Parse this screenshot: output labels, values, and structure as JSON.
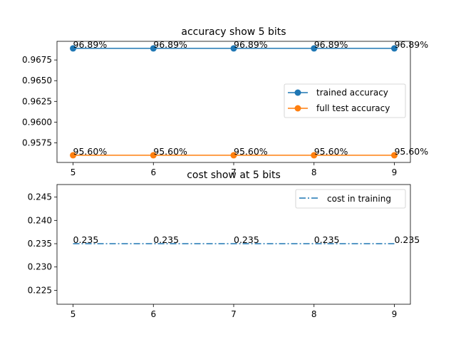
{
  "chart_data": [
    {
      "type": "line",
      "title": "accuracy show 5 bits",
      "xlabel": "",
      "ylabel": "",
      "x": [
        5,
        6,
        7,
        8,
        9
      ],
      "xlim": [
        4.8,
        9.2
      ],
      "ylim": [
        0.95513,
        0.96975
      ],
      "yticks": [
        0.9575,
        0.96,
        0.9625,
        0.965,
        0.9675
      ],
      "ytick_labels": [
        "0.9575",
        "0.9600",
        "0.9625",
        "0.9650",
        "0.9675"
      ],
      "xticks": [
        5,
        6,
        7,
        8,
        9
      ],
      "xtick_labels": [
        "5",
        "6",
        "7",
        "8",
        "9"
      ],
      "grid": false,
      "legend": "center-right",
      "series": [
        {
          "name": "trained accuracy",
          "color": "#1f77b4",
          "linestyle": "solid",
          "marker": "circle",
          "values": [
            0.9689,
            0.9689,
            0.9689,
            0.9689,
            0.9689
          ],
          "labels": [
            "96.89%",
            "96.89%",
            "96.89%",
            "96.89%",
            "96.89%"
          ]
        },
        {
          "name": "full test accuracy",
          "color": "#ff7f0e",
          "linestyle": "solid",
          "marker": "circle",
          "values": [
            0.956,
            0.956,
            0.956,
            0.956,
            0.956
          ],
          "labels": [
            "95.60%",
            "95.60%",
            "95.60%",
            "95.60%",
            "95.60%"
          ]
        }
      ]
    },
    {
      "type": "line",
      "title": "cost show at 5 bits",
      "xlabel": "",
      "ylabel": "",
      "x": [
        5,
        6,
        7,
        8,
        9
      ],
      "xlim": [
        4.8,
        9.2
      ],
      "ylim": [
        0.222,
        0.2477
      ],
      "yticks": [
        0.225,
        0.23,
        0.235,
        0.24,
        0.245
      ],
      "ytick_labels": [
        "0.225",
        "0.230",
        "0.235",
        "0.240",
        "0.245"
      ],
      "xticks": [
        5,
        6,
        7,
        8,
        9
      ],
      "xtick_labels": [
        "5",
        "6",
        "7",
        "8",
        "9"
      ],
      "grid": false,
      "legend": "top-right",
      "series": [
        {
          "name": "cost in training",
          "color": "#1f77b4",
          "linestyle": "dashdot",
          "marker": "none",
          "values": [
            0.235,
            0.235,
            0.235,
            0.235,
            0.235
          ],
          "labels": [
            "0.235",
            "0.235",
            "0.235",
            "0.235",
            "0.235"
          ]
        }
      ]
    }
  ]
}
